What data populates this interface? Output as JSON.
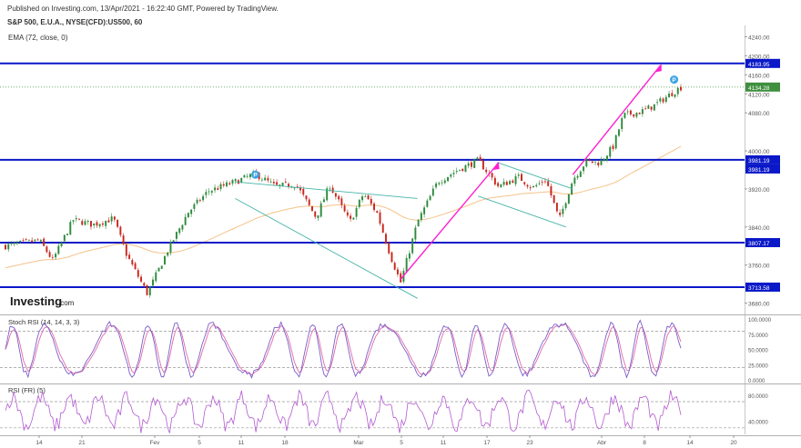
{
  "header": {
    "published": "Published on Investing.com, 13/Apr/2021 - 16:22:40 GMT, Powered by TradingView.",
    "symbol": "S&P 500, E.U.A., NYSE(CFD):US500, 60"
  },
  "brand": {
    "name": "Investing",
    "suffix": ".com"
  },
  "colors": {
    "up": "#2e8b3d",
    "down": "#c8281e",
    "ema": "#f5c28a",
    "level": "#0a18c8",
    "trend": "#ff1fd0",
    "channel": "#46b4a8",
    "stoch_k": "#7b5cc9",
    "stoch_d": "#e06aa8",
    "rsi": "#b35ad1",
    "price_tag": "#3f8f3f",
    "level_tag": "#0a18c8"
  },
  "chart_data": [
    {
      "type": "candlestick",
      "title": "EMA (72, close, 0)",
      "ylim": [
        3660,
        4260
      ],
      "yticks": [
        3680,
        3760,
        3840,
        3920,
        4000,
        4080,
        4120,
        4160,
        4200,
        4240
      ],
      "x_ticks": [
        "14",
        "21",
        "Fev",
        "5",
        "11",
        "18",
        "Mar",
        "5",
        "11",
        "17",
        "23",
        "Abr",
        "8",
        "14",
        "20"
      ],
      "horizontal_levels": [
        {
          "value": 4183.95,
          "label": "4183.95"
        },
        {
          "value": 3981.19,
          "label": "3981.19"
        },
        {
          "value": 3807.17,
          "label": "3807.17"
        },
        {
          "value": 3713.58,
          "label": "3713.58"
        }
      ],
      "last_price": {
        "value": 4134.28,
        "label": "4134.28"
      },
      "extra_level_label": "3981.19",
      "marker_label": "P",
      "price_path": [
        {
          "t": 0,
          "v": 3800
        },
        {
          "t": 0.05,
          "v": 3812
        },
        {
          "t": 0.07,
          "v": 3770
        },
        {
          "t": 0.1,
          "v": 3855
        },
        {
          "t": 0.13,
          "v": 3845
        },
        {
          "t": 0.16,
          "v": 3858
        },
        {
          "t": 0.18,
          "v": 3780
        },
        {
          "t": 0.21,
          "v": 3700
        },
        {
          "t": 0.24,
          "v": 3790
        },
        {
          "t": 0.27,
          "v": 3870
        },
        {
          "t": 0.3,
          "v": 3915
        },
        {
          "t": 0.34,
          "v": 3935
        },
        {
          "t": 0.37,
          "v": 3952
        },
        {
          "t": 0.4,
          "v": 3925
        },
        {
          "t": 0.43,
          "v": 3930
        },
        {
          "t": 0.46,
          "v": 3860
        },
        {
          "t": 0.48,
          "v": 3928
        },
        {
          "t": 0.51,
          "v": 3850
        },
        {
          "t": 0.53,
          "v": 3910
        },
        {
          "t": 0.55,
          "v": 3870
        },
        {
          "t": 0.57,
          "v": 3780
        },
        {
          "t": 0.585,
          "v": 3723
        },
        {
          "t": 0.61,
          "v": 3850
        },
        {
          "t": 0.64,
          "v": 3935
        },
        {
          "t": 0.67,
          "v": 3960
        },
        {
          "t": 0.7,
          "v": 3980
        },
        {
          "t": 0.73,
          "v": 3925
        },
        {
          "t": 0.76,
          "v": 3945
        },
        {
          "t": 0.78,
          "v": 3922
        },
        {
          "t": 0.8,
          "v": 3940
        },
        {
          "t": 0.82,
          "v": 3855
        },
        {
          "t": 0.84,
          "v": 3940
        },
        {
          "t": 0.86,
          "v": 3978
        },
        {
          "t": 0.88,
          "v": 3975
        },
        {
          "t": 0.9,
          "v": 4010
        },
        {
          "t": 0.915,
          "v": 4075
        },
        {
          "t": 0.94,
          "v": 4082
        },
        {
          "t": 0.96,
          "v": 4095
        },
        {
          "t": 0.98,
          "v": 4115
        },
        {
          "t": 1.0,
          "v": 4134
        }
      ]
    },
    {
      "type": "line",
      "title": "Stoch RSI (14, 14, 3, 3)",
      "ylim": [
        0,
        100
      ],
      "yticks": [
        0,
        25,
        50,
        75,
        100
      ],
      "ytick_labels": [
        "0.0000",
        "25.0000",
        "50.0000",
        "75.0000",
        "100.0000"
      ],
      "dashed_levels": [
        20,
        80
      ],
      "series": [
        {
          "values": "oscillating 0-100"
        },
        {
          "values": "oscillating 0-100"
        }
      ]
    },
    {
      "type": "line",
      "title": "RSI (FR) (5)",
      "ylim": [
        20,
        95
      ],
      "yticks": [
        40,
        80
      ],
      "ytick_labels": [
        "40.0000",
        "80.0000"
      ],
      "dashed_levels": [
        30,
        70
      ]
    }
  ]
}
